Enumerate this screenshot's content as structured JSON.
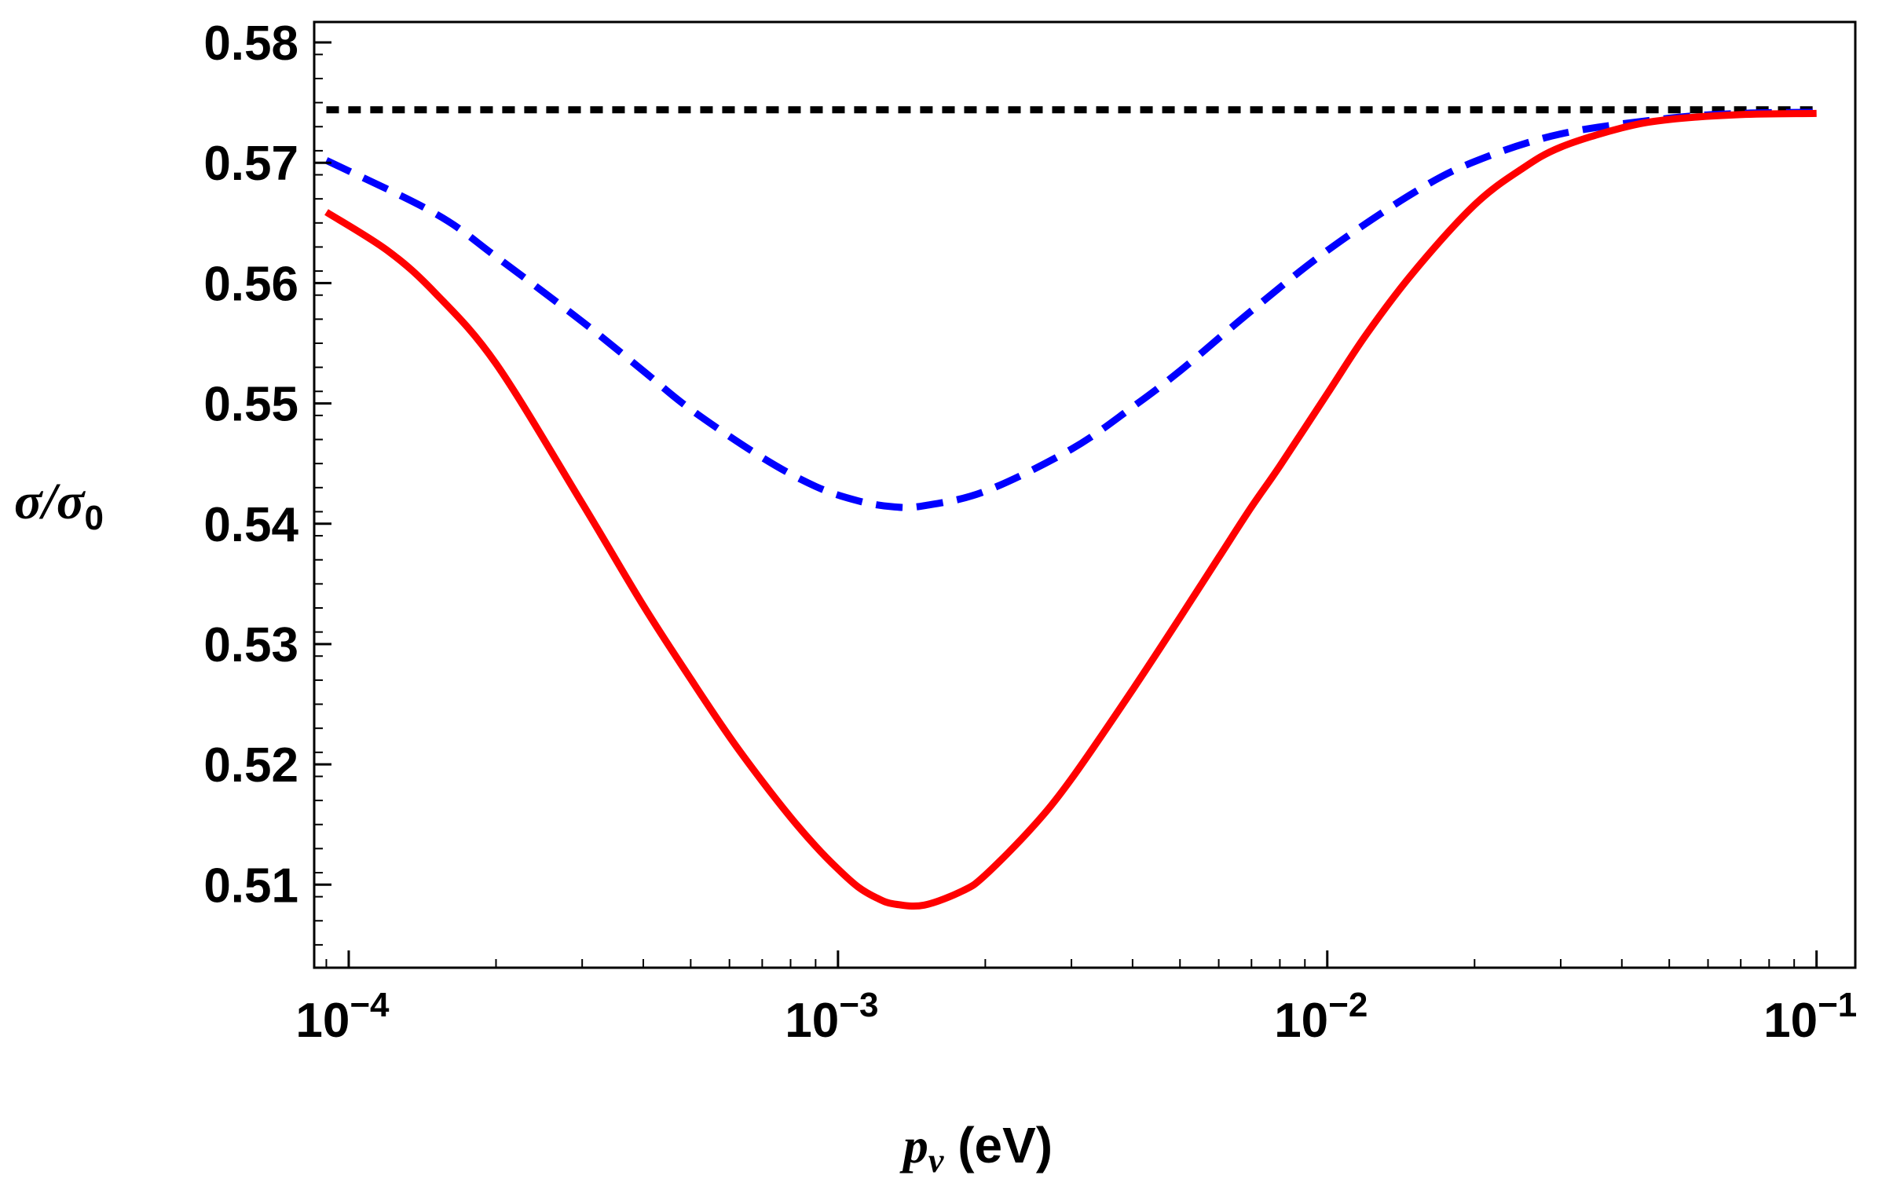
{
  "chart_data": {
    "type": "line",
    "title": "",
    "xscale": "log",
    "xlim": [
      8.5e-05,
      0.12
    ],
    "ylim": [
      0.5031,
      0.5817
    ],
    "ylabel": {
      "main": "σ/σ",
      "sub": "0"
    },
    "xlabel": {
      "main": "p",
      "sub": "ν",
      "unit": " (eV)"
    },
    "y_ticks": [
      0.51,
      0.52,
      0.53,
      0.54,
      0.55,
      0.56,
      0.57,
      0.58
    ],
    "y_tick_labels": [
      "0.51",
      "0.52",
      "0.53",
      "0.54",
      "0.55",
      "0.56",
      "0.57",
      "0.58"
    ],
    "x_ticks": [
      0.0001,
      0.001,
      0.01,
      0.1
    ],
    "x_tick_labels": [
      {
        "base": "10",
        "exp": "−4"
      },
      {
        "base": "10",
        "exp": "−3"
      },
      {
        "base": "10",
        "exp": "−2"
      },
      {
        "base": "10",
        "exp": "−1"
      }
    ],
    "grid": false,
    "series": [
      {
        "name": "black-dotted",
        "color": "#000000",
        "style": "dotted",
        "x": [
          9e-05,
          0.1
        ],
        "y": [
          0.5744,
          0.5744
        ]
      },
      {
        "name": "blue-dashed",
        "color": "#0000ff",
        "style": "dashed",
        "x": [
          9e-05,
          0.00015,
          0.0002,
          0.0003,
          0.0004,
          0.0005,
          0.0007,
          0.0009,
          0.0011,
          0.0013,
          0.0015,
          0.002,
          0.003,
          0.004,
          0.005,
          0.007,
          0.01,
          0.015,
          0.02,
          0.03,
          0.05,
          0.07,
          0.1
        ],
        "y": [
          0.5702,
          0.5658,
          0.5622,
          0.5568,
          0.5527,
          0.5495,
          0.5455,
          0.5431,
          0.5419,
          0.5414,
          0.5415,
          0.5427,
          0.5462,
          0.5497,
          0.5527,
          0.5577,
          0.5627,
          0.5675,
          0.5701,
          0.5724,
          0.5737,
          0.5741,
          0.5742
        ]
      },
      {
        "name": "red-solid",
        "color": "#ff0000",
        "style": "solid",
        "x": [
          9e-05,
          0.00012,
          0.00015,
          0.0002,
          0.0003,
          0.0004,
          0.0005,
          0.0006,
          0.0007,
          0.0008,
          0.0009,
          0.001,
          0.0011,
          0.0012,
          0.0013,
          0.0015,
          0.0018,
          0.002,
          0.0025,
          0.003,
          0.004,
          0.005,
          0.006,
          0.007,
          0.008,
          0.01,
          0.012,
          0.015,
          0.02,
          0.025,
          0.03,
          0.04,
          0.05,
          0.07,
          0.1
        ],
        "y": [
          0.5659,
          0.5627,
          0.5592,
          0.5533,
          0.5417,
          0.5332,
          0.5271,
          0.5223,
          0.5186,
          0.5156,
          0.5132,
          0.5113,
          0.5098,
          0.5089,
          0.5084,
          0.5083,
          0.5095,
          0.5108,
          0.5148,
          0.5188,
          0.5262,
          0.5322,
          0.5372,
          0.5414,
          0.5448,
          0.5508,
          0.5557,
          0.5609,
          0.5665,
          0.5695,
          0.5713,
          0.5729,
          0.5736,
          0.574,
          0.5741
        ]
      }
    ]
  }
}
